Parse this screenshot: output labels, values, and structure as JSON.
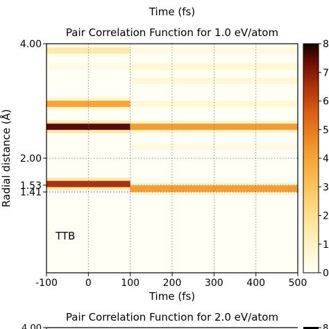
{
  "chart_data": [
    {
      "type": "heatmap",
      "top_axis_label": "Time (fs)",
      "title": "Pair Correlation Function for 1.0 eV/atom",
      "xlabel": "Time (fs)",
      "ylabel": "Radial distance (Å)",
      "annotation": "TTB",
      "xlim": [
        -100,
        500
      ],
      "ylim": [
        0,
        4.0
      ],
      "xticks": [
        -100,
        0,
        100,
        200,
        300,
        400,
        500
      ],
      "yticks": [
        {
          "value": 4.0,
          "label": "4.00"
        },
        {
          "value": 2.0,
          "label": "2.00"
        },
        {
          "value": 1.53,
          "label": "1.53"
        },
        {
          "value": 1.41,
          "label": "1.41"
        }
      ],
      "reference_lines_y": [
        4.0,
        2.0,
        1.53,
        1.41
      ],
      "reference_lines_x": [
        0,
        100,
        200,
        300,
        400
      ],
      "grid": "dotted",
      "colormap": "afmhot_r",
      "colorbar": {
        "min": 0,
        "max": 8,
        "ticks": [
          0,
          1,
          2,
          3,
          4,
          5,
          6,
          7,
          8
        ]
      },
      "bands": [
        {
          "r": 3.88,
          "segments": [
            {
              "t0": -100,
              "t1": 100,
              "intensity": 1.5
            },
            {
              "t0": 100,
              "t1": 500,
              "intensity": 0.4
            }
          ]
        },
        {
          "r": 3.6,
          "segments": [
            {
              "t0": -100,
              "t1": 100,
              "intensity": 0.3
            },
            {
              "t0": 100,
              "t1": 500,
              "intensity": 0.6
            }
          ]
        },
        {
          "r": 3.35,
          "segments": [
            {
              "t0": 100,
              "t1": 500,
              "intensity": 0.6
            }
          ]
        },
        {
          "r": 2.95,
          "segments": [
            {
              "t0": -100,
              "t1": 100,
              "intensity": 4.0
            },
            {
              "t0": 100,
              "t1": 500,
              "intensity": 0.6
            }
          ]
        },
        {
          "r": 2.55,
          "segments": [
            {
              "t0": -100,
              "t1": 100,
              "intensity": 7.5
            },
            {
              "t0": 100,
              "t1": 500,
              "intensity": 4.2
            }
          ]
        },
        {
          "r": 2.2,
          "segments": [
            {
              "t0": 100,
              "t1": 500,
              "intensity": 0.4
            }
          ]
        },
        {
          "r": 1.55,
          "segments": [
            {
              "t0": -100,
              "t1": 100,
              "intensity": 6.5
            }
          ]
        },
        {
          "r": 1.47,
          "segments": [
            {
              "t0": 100,
              "t1": 500,
              "intensity": 4.2
            }
          ]
        }
      ]
    },
    {
      "type": "heatmap",
      "title": "Pair Correlation Function for 2.0 eV/atom",
      "yticks": [
        {
          "value": 4.0,
          "label": "4.00"
        }
      ],
      "colorbar": {
        "ticks": [
          8
        ]
      }
    }
  ]
}
